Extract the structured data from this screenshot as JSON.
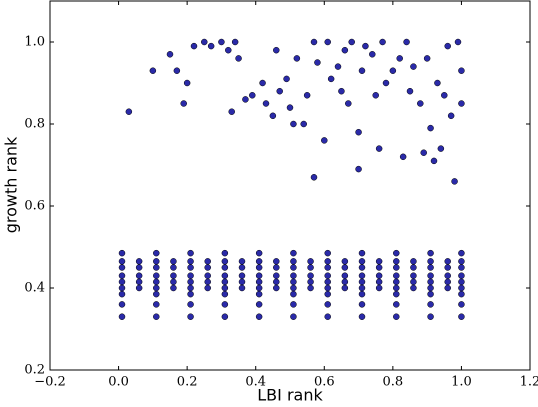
{
  "chart_data": {
    "type": "scatter",
    "xlabel": "LBI rank",
    "ylabel": "growth rank",
    "color": "#2a2aa8",
    "xlim": [
      -0.2,
      1.2
    ],
    "ylim": [
      0.2,
      1.1
    ],
    "xticks": [
      {
        "value": -0.2,
        "label": "−0.2"
      },
      {
        "value": 0,
        "label": "0.0"
      },
      0.2,
      0.4,
      0.6,
      0.8,
      {
        "value": 1,
        "label": "1.0"
      },
      1.2
    ],
    "yticks": [
      0.2,
      0.4,
      0.6,
      0.8,
      {
        "value": 1,
        "label": "1.0"
      }
    ],
    "x": [
      0.01,
      0.11,
      0.21,
      0.31,
      0.41,
      0.51,
      0.61,
      0.71,
      0.81,
      0.91,
      1.0,
      0.01,
      0.11,
      0.21,
      0.31,
      0.41,
      0.51,
      0.61,
      0.71,
      0.81,
      0.91,
      1.0,
      0.06,
      0.16,
      0.26,
      0.36,
      0.46,
      0.56,
      0.66,
      0.76,
      0.86,
      0.96,
      0.01,
      0.11,
      0.21,
      0.31,
      0.41,
      0.51,
      0.61,
      0.71,
      0.81,
      0.91,
      1.0,
      0.06,
      0.16,
      0.26,
      0.36,
      0.46,
      0.56,
      0.66,
      0.76,
      0.86,
      0.96,
      0.01,
      0.11,
      0.21,
      0.31,
      0.41,
      0.51,
      0.61,
      0.71,
      0.81,
      0.91,
      1.0,
      0.06,
      0.16,
      0.26,
      0.36,
      0.46,
      0.56,
      0.66,
      0.76,
      0.86,
      0.96,
      0.01,
      0.11,
      0.21,
      0.31,
      0.41,
      0.51,
      0.61,
      0.71,
      0.81,
      0.91,
      1.0,
      0.06,
      0.16,
      0.26,
      0.36,
      0.46,
      0.56,
      0.66,
      0.76,
      0.86,
      0.96,
      0.01,
      0.11,
      0.21,
      0.31,
      0.41,
      0.51,
      0.61,
      0.71,
      0.81,
      0.91,
      1.0,
      0.06,
      0.16,
      0.26,
      0.36,
      0.46,
      0.56,
      0.66,
      0.76,
      0.86,
      0.96,
      0.01,
      0.11,
      0.21,
      0.31,
      0.41,
      0.51,
      0.61,
      0.71,
      0.81,
      0.91,
      1.0,
      0.01,
      0.11,
      0.21,
      0.31,
      0.41,
      0.51,
      0.61,
      0.71,
      0.81,
      0.91,
      1.0,
      0.01,
      0.11,
      0.21,
      0.31,
      0.41,
      0.51,
      0.61,
      0.71,
      0.81,
      0.91,
      1.0,
      0.03,
      0.1,
      0.15,
      0.17,
      0.19,
      0.2,
      0.22,
      0.25,
      0.27,
      0.3,
      0.32,
      0.33,
      0.34,
      0.35,
      0.37,
      0.39,
      0.42,
      0.43,
      0.45,
      0.46,
      0.47,
      0.49,
      0.5,
      0.51,
      0.52,
      0.54,
      0.55,
      0.57,
      0.57,
      0.58,
      0.6,
      0.61,
      0.62,
      0.64,
      0.65,
      0.66,
      0.67,
      0.68,
      0.7,
      0.7,
      0.71,
      0.72,
      0.74,
      0.75,
      0.76,
      0.77,
      0.78,
      0.8,
      0.82,
      0.83,
      0.84,
      0.85,
      0.86,
      0.88,
      0.89,
      0.9,
      0.91,
      0.92,
      0.93,
      0.94,
      0.95,
      0.96,
      0.97,
      0.98,
      0.99,
      1.0,
      1.0
    ],
    "values": [
      0.485,
      0.485,
      0.485,
      0.485,
      0.485,
      0.485,
      0.485,
      0.485,
      0.485,
      0.485,
      0.485,
      0.465,
      0.465,
      0.465,
      0.465,
      0.465,
      0.465,
      0.465,
      0.465,
      0.465,
      0.465,
      0.465,
      0.465,
      0.465,
      0.465,
      0.465,
      0.465,
      0.465,
      0.465,
      0.465,
      0.465,
      0.465,
      0.45,
      0.45,
      0.45,
      0.45,
      0.45,
      0.45,
      0.45,
      0.45,
      0.45,
      0.45,
      0.45,
      0.45,
      0.45,
      0.45,
      0.45,
      0.45,
      0.45,
      0.45,
      0.45,
      0.45,
      0.45,
      0.43,
      0.43,
      0.43,
      0.43,
      0.43,
      0.43,
      0.43,
      0.43,
      0.43,
      0.43,
      0.43,
      0.43,
      0.43,
      0.43,
      0.43,
      0.43,
      0.43,
      0.43,
      0.43,
      0.43,
      0.43,
      0.415,
      0.415,
      0.415,
      0.415,
      0.415,
      0.415,
      0.415,
      0.415,
      0.415,
      0.415,
      0.415,
      0.415,
      0.415,
      0.415,
      0.415,
      0.415,
      0.415,
      0.415,
      0.415,
      0.415,
      0.415,
      0.4,
      0.4,
      0.4,
      0.4,
      0.4,
      0.4,
      0.4,
      0.4,
      0.4,
      0.4,
      0.4,
      0.4,
      0.4,
      0.4,
      0.4,
      0.4,
      0.4,
      0.4,
      0.4,
      0.4,
      0.4,
      0.385,
      0.385,
      0.385,
      0.385,
      0.385,
      0.385,
      0.385,
      0.385,
      0.385,
      0.385,
      0.385,
      0.36,
      0.36,
      0.36,
      0.36,
      0.36,
      0.36,
      0.36,
      0.36,
      0.36,
      0.36,
      0.36,
      0.33,
      0.33,
      0.33,
      0.33,
      0.33,
      0.33,
      0.33,
      0.33,
      0.33,
      0.33,
      0.33,
      0.83,
      0.93,
      0.97,
      0.93,
      0.85,
      0.9,
      0.99,
      1.0,
      0.99,
      1.0,
      0.98,
      0.83,
      1.0,
      0.96,
      0.86,
      0.87,
      0.9,
      0.85,
      0.82,
      0.98,
      0.88,
      0.91,
      0.84,
      0.8,
      0.96,
      0.8,
      0.87,
      1.0,
      0.67,
      0.95,
      0.76,
      1.0,
      0.91,
      0.94,
      0.88,
      0.98,
      0.85,
      1.0,
      0.69,
      0.78,
      0.93,
      0.99,
      0.97,
      0.87,
      0.74,
      1.0,
      0.9,
      0.93,
      0.96,
      0.72,
      1.0,
      0.88,
      0.94,
      0.85,
      0.73,
      0.96,
      0.79,
      0.71,
      0.9,
      0.74,
      0.87,
      0.99,
      0.82,
      0.66,
      1.0,
      0.85,
      0.93
    ]
  }
}
